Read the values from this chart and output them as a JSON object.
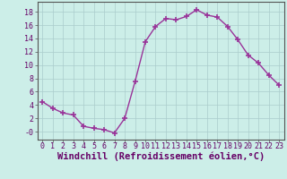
{
  "x": [
    0,
    1,
    2,
    3,
    4,
    5,
    6,
    7,
    8,
    9,
    10,
    11,
    12,
    13,
    14,
    15,
    16,
    17,
    18,
    19,
    20,
    21,
    22,
    23
  ],
  "y": [
    4.5,
    3.5,
    2.8,
    2.5,
    0.8,
    0.5,
    0.3,
    -0.2,
    2.0,
    7.5,
    13.5,
    15.8,
    17.0,
    16.8,
    17.3,
    18.3,
    17.5,
    17.2,
    15.8,
    13.8,
    11.5,
    10.3,
    8.5,
    7.0
  ],
  "line_color": "#993399",
  "marker": "+",
  "markersize": 4,
  "markeredgewidth": 1.2,
  "linewidth": 1,
  "xlabel": "Windchill (Refroidissement éolien,°C)",
  "xlabel_fontsize": 7.5,
  "ylabel_ticks": [
    0,
    2,
    4,
    6,
    8,
    10,
    12,
    14,
    16,
    18
  ],
  "ylabel_labels": [
    "-0",
    "2",
    "4",
    "6",
    "8",
    "10",
    "12",
    "14",
    "16",
    "18"
  ],
  "xtick_labels": [
    "0",
    "1",
    "2",
    "3",
    "4",
    "5",
    "6",
    "7",
    "8",
    "9",
    "10",
    "11",
    "12",
    "13",
    "14",
    "15",
    "16",
    "17",
    "18",
    "19",
    "20",
    "21",
    "22",
    "23"
  ],
  "ylim": [
    -1.2,
    19.5
  ],
  "xlim": [
    -0.5,
    23.5
  ],
  "bg_color": "#cceee8",
  "grid_color": "#aacccc",
  "tick_fontsize": 6,
  "spine_color": "#555555",
  "label_color": "#660066"
}
